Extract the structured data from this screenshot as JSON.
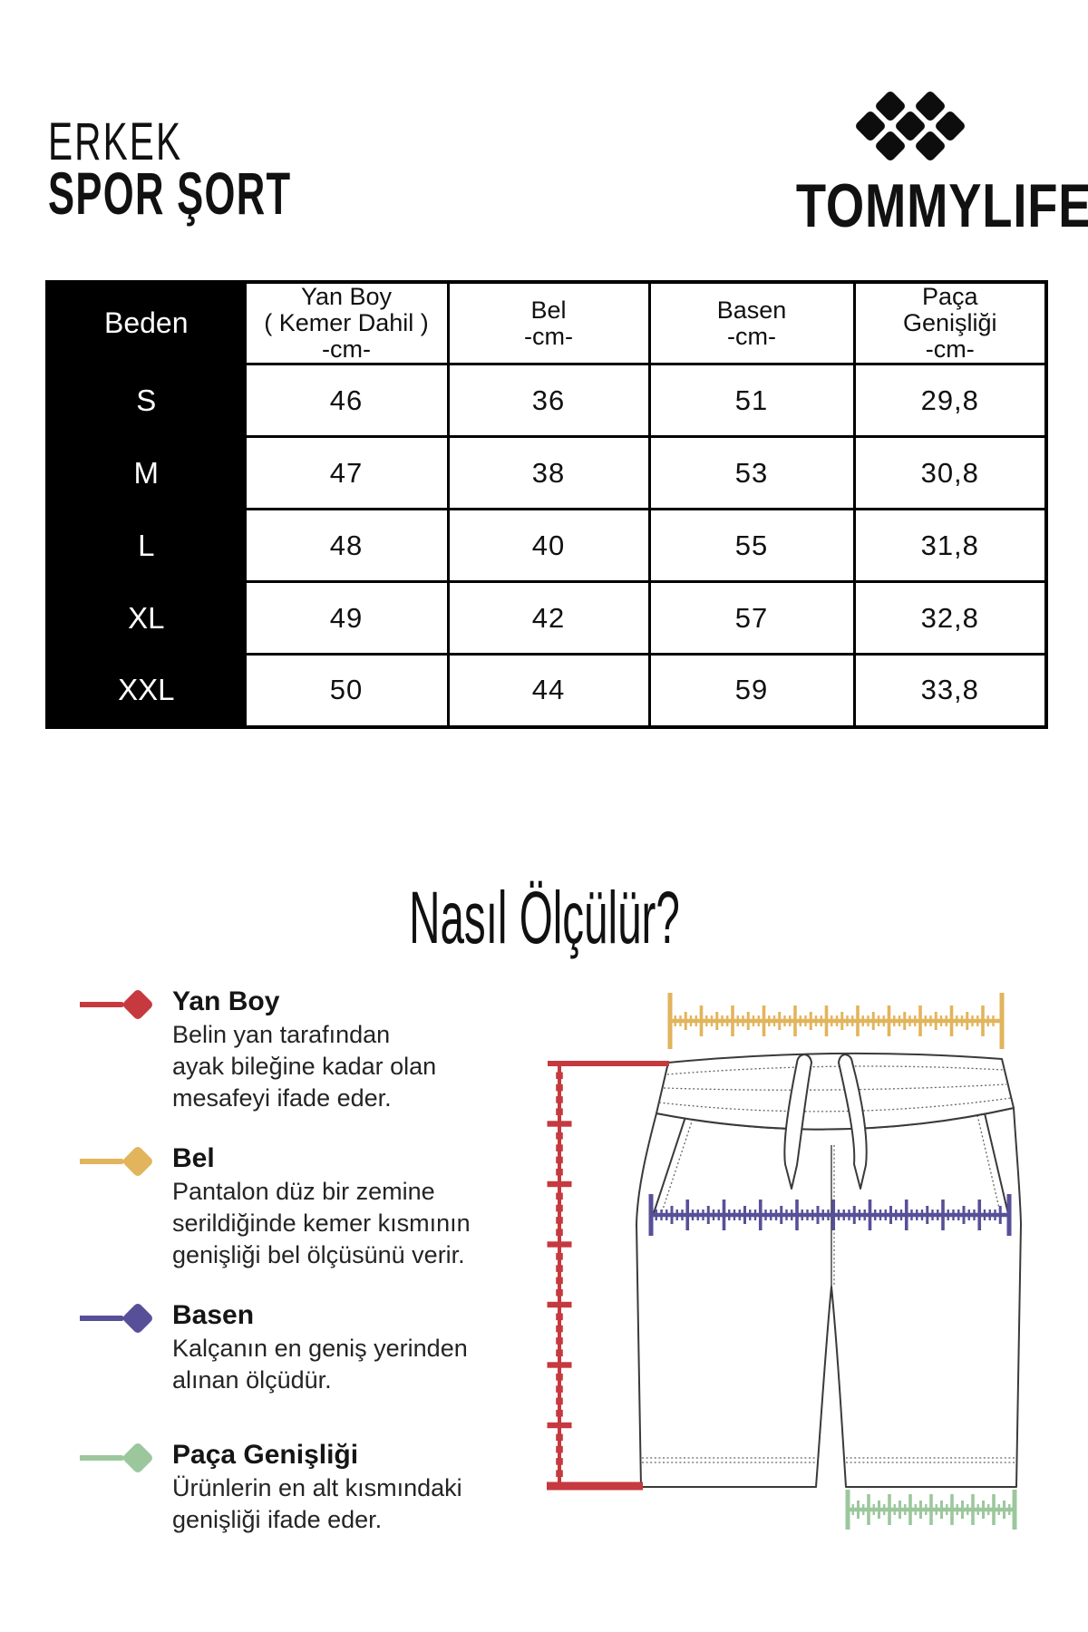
{
  "header": {
    "category": "ERKEK",
    "product": "SPOR ŞORT",
    "brand": "TOMMYLIFE",
    "logo_icon": "diamond-lattice-logo"
  },
  "size_table": {
    "columns": [
      {
        "lines": [
          "Beden"
        ]
      },
      {
        "lines": [
          "Yan Boy",
          "( Kemer Dahil )",
          "-cm-"
        ]
      },
      {
        "lines": [
          "Bel",
          "-cm-"
        ]
      },
      {
        "lines": [
          "Basen",
          "-cm-"
        ]
      },
      {
        "lines": [
          "Paça",
          "Genişliği",
          "-cm-"
        ]
      }
    ],
    "rows": [
      {
        "size": "S",
        "values": [
          "46",
          "36",
          "51",
          "29,8"
        ]
      },
      {
        "size": "M",
        "values": [
          "47",
          "38",
          "53",
          "30,8"
        ]
      },
      {
        "size": "L",
        "values": [
          "48",
          "40",
          "55",
          "31,8"
        ]
      },
      {
        "size": "XL",
        "values": [
          "49",
          "42",
          "57",
          "32,8"
        ]
      },
      {
        "size": "XXL",
        "values": [
          "50",
          "44",
          "59",
          "33,8"
        ]
      }
    ]
  },
  "how_to_measure": {
    "title": "Nasıl Ölçülür?",
    "items": [
      {
        "name": "Yan Boy",
        "color": "#c5393f",
        "icon": "diamond-marker",
        "description_lines": [
          "Belin yan tarafından",
          "ayak bileğine kadar olan",
          "mesafeyi ifade eder."
        ]
      },
      {
        "name": "Bel",
        "color": "#e2b45c",
        "icon": "diamond-marker",
        "description_lines": [
          "Pantalon düz bir zemine",
          "serildiğinde kemer kısmının",
          "genişliği bel ölçüsünü verir."
        ]
      },
      {
        "name": "Basen",
        "color": "#575098",
        "icon": "diamond-marker",
        "description_lines": [
          "Kalçanın en geniş yerinden",
          "alınan ölçüdür."
        ]
      },
      {
        "name": "Paça Genişliği",
        "color": "#9cc79d",
        "icon": "diamond-marker",
        "description_lines": [
          "Ürünlerin en alt kısmındaki",
          "genişliği ifade eder."
        ]
      }
    ]
  },
  "diagram": {
    "description": "shorts-technical-drawing-with-measure-rulers",
    "colors": {
      "yan_boy_ruler": "#c5393f",
      "bel_ruler": "#e2b45c",
      "basen_ruler": "#575098",
      "paca_ruler": "#9cc79d",
      "outline": "#3a3a3a",
      "stitch": "#666666"
    }
  }
}
